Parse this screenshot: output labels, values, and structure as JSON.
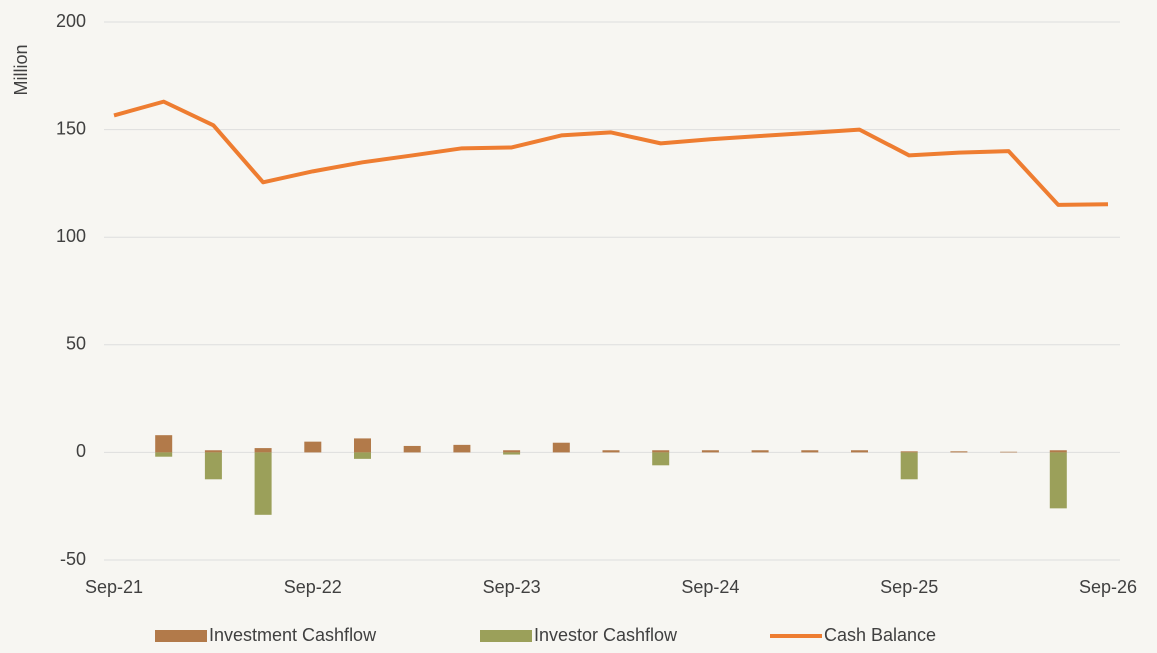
{
  "chart_data": {
    "type": "bar_line",
    "y_axis_label": "Million",
    "categories": [
      "Sep-21",
      null,
      null,
      null,
      "Sep-22",
      null,
      null,
      null,
      "Sep-23",
      null,
      null,
      null,
      "Sep-24",
      null,
      null,
      null,
      "Sep-25",
      null,
      null,
      null,
      "Sep-26"
    ],
    "series": [
      {
        "name": "Investment Cashflow",
        "type": "bar",
        "color": "#b27a4a",
        "values": [
          0,
          8,
          1,
          2,
          5,
          6.5,
          3,
          3.5,
          1,
          4.5,
          1,
          1,
          1,
          1,
          1,
          1,
          0.5,
          0.5,
          0.3,
          1,
          0
        ]
      },
      {
        "name": "Investor Cashflow",
        "type": "bar",
        "color": "#9ba05a",
        "values": [
          0,
          -2,
          -12.5,
          -29,
          0,
          -3,
          0,
          0,
          -1,
          0,
          0,
          -6,
          0,
          0,
          0,
          0,
          -12.5,
          0,
          0,
          -26,
          0
        ]
      },
      {
        "name": "Cash Balance",
        "type": "line",
        "color": "#ee7d31",
        "values": [
          156.6,
          163,
          152,
          125.5,
          130.6,
          134.8,
          138,
          141.3,
          141.7,
          147.3,
          148.7,
          143.6,
          145.5,
          147,
          148.5,
          150,
          138,
          139.3,
          140,
          115,
          115.3
        ]
      }
    ],
    "ylim": [
      -50,
      200
    ],
    "yticks": [
      -50,
      0,
      50,
      100,
      150,
      200
    ],
    "grid": true,
    "legend": "bottom"
  }
}
